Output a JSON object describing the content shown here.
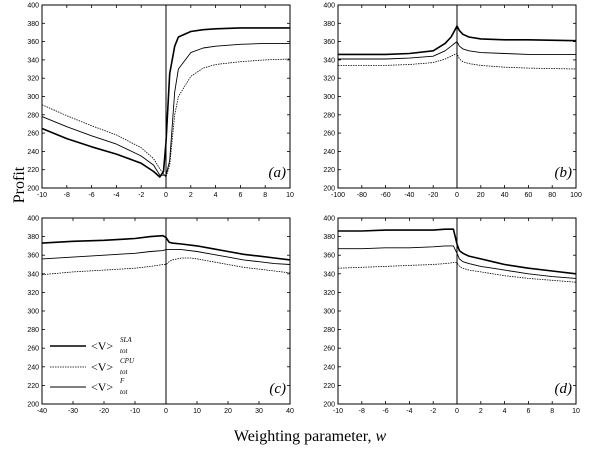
{
  "figure": {
    "ylabel": "Profit",
    "xlabel_text": "Weighting parameter, ",
    "xlabel_var": "w"
  },
  "legend": [
    {
      "base": "<V>",
      "sup": "SLA",
      "sub": "tot",
      "style": "solid-thick"
    },
    {
      "base": "<V>",
      "sup": "CPU",
      "sub": "tot",
      "style": "dotted"
    },
    {
      "base": "<V>",
      "sup": "F",
      "sub": "tot",
      "style": "solid-thin"
    }
  ],
  "colors": {
    "line": "#000000",
    "background": "#ffffff"
  },
  "chart_data": [
    {
      "type": "line",
      "panel": "(a)",
      "xlim": [
        -10,
        10
      ],
      "ylim": [
        200,
        400
      ],
      "xticks": [
        -10,
        -8,
        -6,
        -4,
        -2,
        0,
        2,
        4,
        6,
        8,
        10
      ],
      "yticks": [
        200,
        220,
        240,
        260,
        280,
        300,
        320,
        340,
        360,
        380,
        400
      ],
      "vline_x": 0,
      "series": [
        {
          "key": "SLA",
          "x": [
            -10,
            -8,
            -6,
            -4,
            -2,
            -1,
            -0.5,
            -0.2,
            0,
            0.3,
            0.7,
            1,
            2,
            3,
            4,
            6,
            8,
            10
          ],
          "y": [
            265,
            254,
            245,
            237,
            227,
            218,
            212,
            218,
            250,
            325,
            355,
            365,
            371,
            373,
            374,
            375,
            375,
            375
          ]
        },
        {
          "key": "CPU",
          "x": [
            -10,
            -8,
            -6,
            -4,
            -2,
            -1,
            -0.5,
            0,
            0.3,
            0.7,
            1,
            2,
            3,
            4,
            6,
            8,
            10
          ],
          "y": [
            291,
            279,
            268,
            258,
            244,
            232,
            221,
            212,
            225,
            280,
            300,
            322,
            331,
            335,
            338,
            340,
            341
          ]
        },
        {
          "key": "F",
          "x": [
            -10,
            -8,
            -6,
            -4,
            -2,
            -1,
            -0.5,
            0,
            0.3,
            0.7,
            1,
            2,
            3,
            4,
            6,
            8,
            10
          ],
          "y": [
            278,
            267,
            257,
            248,
            235,
            225,
            214,
            214,
            230,
            305,
            330,
            348,
            353,
            355,
            357,
            358,
            358
          ]
        }
      ]
    },
    {
      "type": "line",
      "panel": "(b)",
      "xlim": [
        -100,
        100
      ],
      "ylim": [
        200,
        400
      ],
      "xticks": [
        -100,
        -80,
        -60,
        -40,
        -20,
        0,
        20,
        40,
        60,
        80,
        100
      ],
      "yticks": [
        200,
        220,
        240,
        260,
        280,
        300,
        320,
        340,
        360,
        380,
        400
      ],
      "vline_x": 0,
      "series": [
        {
          "key": "SLA",
          "x": [
            -100,
            -60,
            -40,
            -20,
            -10,
            -5,
            -2,
            0,
            2,
            5,
            10,
            20,
            40,
            60,
            100
          ],
          "y": [
            346,
            346,
            347,
            350,
            358,
            365,
            372,
            377,
            372,
            368,
            365,
            363,
            362,
            362,
            361
          ]
        },
        {
          "key": "CPU",
          "x": [
            -100,
            -60,
            -40,
            -20,
            -10,
            -5,
            -2,
            0,
            2,
            5,
            10,
            20,
            40,
            60,
            100
          ],
          "y": [
            334,
            334,
            335,
            337,
            341,
            344,
            346,
            347,
            341,
            338,
            336,
            334,
            332,
            331,
            330
          ]
        },
        {
          "key": "F",
          "x": [
            -100,
            -60,
            -40,
            -20,
            -10,
            -5,
            -2,
            0,
            2,
            5,
            10,
            20,
            40,
            60,
            100
          ],
          "y": [
            341,
            341,
            342,
            344,
            350,
            355,
            358,
            360,
            355,
            352,
            350,
            348,
            347,
            346,
            346
          ]
        }
      ]
    },
    {
      "type": "line",
      "panel": "(c)",
      "xlim": [
        -40,
        40
      ],
      "ylim": [
        200,
        400
      ],
      "xticks": [
        -40,
        -30,
        -20,
        -10,
        0,
        10,
        20,
        30,
        40
      ],
      "yticks": [
        200,
        220,
        240,
        260,
        280,
        300,
        320,
        340,
        360,
        380,
        400
      ],
      "vline_x": 0,
      "series": [
        {
          "key": "SLA",
          "x": [
            -40,
            -30,
            -20,
            -10,
            -5,
            -1,
            0,
            1,
            2,
            5,
            10,
            15,
            20,
            25,
            30,
            35,
            40
          ],
          "y": [
            373,
            375,
            376,
            378,
            380,
            381,
            379,
            374,
            373,
            372,
            370,
            367,
            364,
            361,
            359,
            357,
            355
          ]
        },
        {
          "key": "CPU",
          "x": [
            -40,
            -30,
            -20,
            -10,
            -5,
            -1,
            0,
            1,
            2,
            5,
            8,
            10,
            15,
            20,
            25,
            30,
            35,
            40
          ],
          "y": [
            339,
            342,
            344,
            346,
            348,
            350,
            350,
            353,
            355,
            357,
            357,
            356,
            353,
            350,
            347,
            345,
            343,
            341
          ]
        },
        {
          "key": "F",
          "x": [
            -40,
            -30,
            -20,
            -10,
            -5,
            -1,
            0,
            1,
            2,
            5,
            10,
            15,
            20,
            25,
            30,
            35,
            40
          ],
          "y": [
            356,
            358,
            360,
            362,
            364,
            365,
            366,
            366,
            366,
            366,
            364,
            361,
            358,
            355,
            353,
            351,
            350
          ]
        }
      ]
    },
    {
      "type": "line",
      "panel": "(d)",
      "xlim": [
        -10,
        10
      ],
      "ylim": [
        200,
        400
      ],
      "xticks": [
        -10,
        -8,
        -6,
        -4,
        -2,
        0,
        2,
        4,
        6,
        8,
        10
      ],
      "yticks": [
        200,
        220,
        240,
        260,
        280,
        300,
        320,
        340,
        360,
        380,
        400
      ],
      "vline_x": 0,
      "series": [
        {
          "key": "SLA",
          "x": [
            -10,
            -8,
            -6,
            -4,
            -2,
            -1,
            -0.3,
            0,
            0.2,
            0.5,
            1,
            2,
            3,
            4,
            6,
            8,
            10
          ],
          "y": [
            386,
            386,
            387,
            387,
            387,
            388,
            388,
            372,
            365,
            362,
            359,
            356,
            353,
            350,
            346,
            343,
            340
          ]
        },
        {
          "key": "CPU",
          "x": [
            -10,
            -8,
            -6,
            -4,
            -2,
            -1,
            -0.3,
            0,
            0.2,
            0.5,
            1,
            2,
            3,
            4,
            6,
            8,
            10
          ],
          "y": [
            346,
            347,
            348,
            349,
            350,
            351,
            352,
            352,
            348,
            346,
            344,
            342,
            340,
            338,
            335,
            333,
            331
          ]
        },
        {
          "key": "F",
          "x": [
            -10,
            -8,
            -6,
            -4,
            -2,
            -1,
            -0.3,
            0,
            0.2,
            0.5,
            1,
            2,
            3,
            4,
            6,
            8,
            10
          ],
          "y": [
            367,
            367,
            368,
            368,
            369,
            370,
            370,
            362,
            356,
            353,
            351,
            348,
            346,
            344,
            340,
            337,
            335
          ]
        }
      ]
    }
  ]
}
